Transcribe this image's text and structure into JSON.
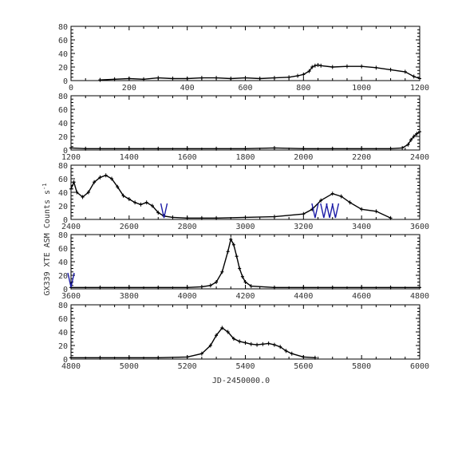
{
  "figure": {
    "ylabel_text": "GX339 XTE ASM Counts s",
    "ylabel_sup": "-1",
    "xlabel": "JD-2450000.0"
  },
  "colors": {
    "data": "#000000",
    "frame": "#000000",
    "marker": "#1a1aa6"
  },
  "chart_data": [
    {
      "type": "scatter",
      "xlim": [
        0,
        1200
      ],
      "ylim": [
        0,
        80
      ],
      "xticks": [
        "0",
        "200",
        "400",
        "600",
        "800",
        "1000",
        "1200"
      ],
      "yticks": [
        "0",
        "20",
        "40",
        "60",
        "80"
      ],
      "series": [
        {
          "x": [
            100,
            150,
            200,
            250,
            300,
            350,
            400,
            450,
            500,
            550,
            600,
            650,
            700,
            750,
            780,
            800,
            820,
            830,
            840,
            850,
            860,
            900,
            950,
            1000,
            1050,
            1100,
            1150,
            1180,
            1200
          ],
          "y": [
            1,
            2,
            3,
            2,
            4,
            3,
            3,
            4,
            4,
            3,
            4,
            3,
            4,
            5,
            7,
            9,
            14,
            20,
            22,
            23,
            22,
            20,
            21,
            21,
            19,
            16,
            13,
            6,
            3
          ]
        }
      ]
    },
    {
      "type": "scatter",
      "xlim": [
        1200,
        2400
      ],
      "ylim": [
        0,
        80
      ],
      "xticks": [
        "1200",
        "1400",
        "1600",
        "1800",
        "2000",
        "2200",
        "2400"
      ],
      "yticks": [
        "0",
        "20",
        "40",
        "60",
        "80"
      ],
      "series": [
        {
          "x": [
            1200,
            1250,
            1300,
            1400,
            1500,
            1600,
            1700,
            1800,
            1900,
            2000,
            2100,
            2200,
            2300,
            2340,
            2360,
            2370,
            2380,
            2390,
            2400
          ],
          "y": [
            3,
            2,
            2,
            2,
            2,
            2,
            2,
            2,
            3,
            2,
            2,
            2,
            2,
            3,
            8,
            15,
            20,
            24,
            27
          ]
        }
      ]
    },
    {
      "type": "scatter",
      "xlim": [
        2400,
        3600
      ],
      "ylim": [
        0,
        80
      ],
      "xticks": [
        "2400",
        "2600",
        "2800",
        "3000",
        "3200",
        "3400",
        "3600"
      ],
      "yticks": [
        "0",
        "20",
        "40",
        "60",
        "80"
      ],
      "series": [
        {
          "x": [
            2400,
            2410,
            2420,
            2440,
            2460,
            2480,
            2500,
            2520,
            2540,
            2560,
            2580,
            2600,
            2620,
            2640,
            2660,
            2680,
            2700,
            2720,
            2750,
            2800,
            2850,
            2900,
            3000,
            3100,
            3200,
            3230,
            3260,
            3300,
            3330,
            3360,
            3400,
            3450,
            3500
          ],
          "y": [
            45,
            55,
            40,
            33,
            40,
            55,
            62,
            65,
            60,
            48,
            35,
            30,
            25,
            22,
            25,
            20,
            10,
            5,
            3,
            2,
            2,
            2,
            3,
            4,
            8,
            15,
            28,
            38,
            34,
            25,
            15,
            12,
            2
          ]
        }
      ],
      "markers": [
        2720,
        3240,
        3270,
        3290,
        3310
      ]
    },
    {
      "type": "scatter",
      "xlim": [
        3600,
        4800
      ],
      "ylim": [
        0,
        80
      ],
      "xticks": [
        "3600",
        "3800",
        "4000",
        "4200",
        "4400",
        "4600",
        "4800"
      ],
      "yticks": [
        "0",
        "20",
        "40",
        "60",
        "80"
      ],
      "series": [
        {
          "x": [
            3600,
            3700,
            3800,
            3900,
            4000,
            4050,
            4080,
            4100,
            4120,
            4140,
            4150,
            4160,
            4170,
            4180,
            4190,
            4200,
            4220,
            4300,
            4400,
            4500,
            4600,
            4700,
            4800
          ],
          "y": [
            2,
            2,
            2,
            2,
            2,
            3,
            5,
            10,
            25,
            55,
            73,
            65,
            48,
            30,
            18,
            10,
            4,
            2,
            2,
            2,
            2,
            2,
            2
          ]
        }
      ],
      "markers": [
        3600
      ]
    },
    {
      "type": "scatter",
      "xlim": [
        4800,
        6000
      ],
      "ylim": [
        0,
        80
      ],
      "xticks": [
        "4800",
        "5000",
        "5200",
        "5400",
        "5600",
        "5800",
        "6000"
      ],
      "yticks": [
        "0",
        "20",
        "40",
        "60",
        "80"
      ],
      "series": [
        {
          "x": [
            4800,
            4900,
            5000,
            5100,
            5200,
            5250,
            5280,
            5300,
            5320,
            5340,
            5360,
            5380,
            5400,
            5420,
            5440,
            5460,
            5480,
            5500,
            5520,
            5540,
            5560,
            5600,
            5640
          ],
          "y": [
            2,
            2,
            2,
            2,
            3,
            8,
            20,
            35,
            46,
            40,
            30,
            26,
            24,
            22,
            21,
            22,
            23,
            21,
            18,
            12,
            8,
            3,
            2
          ]
        }
      ]
    }
  ]
}
